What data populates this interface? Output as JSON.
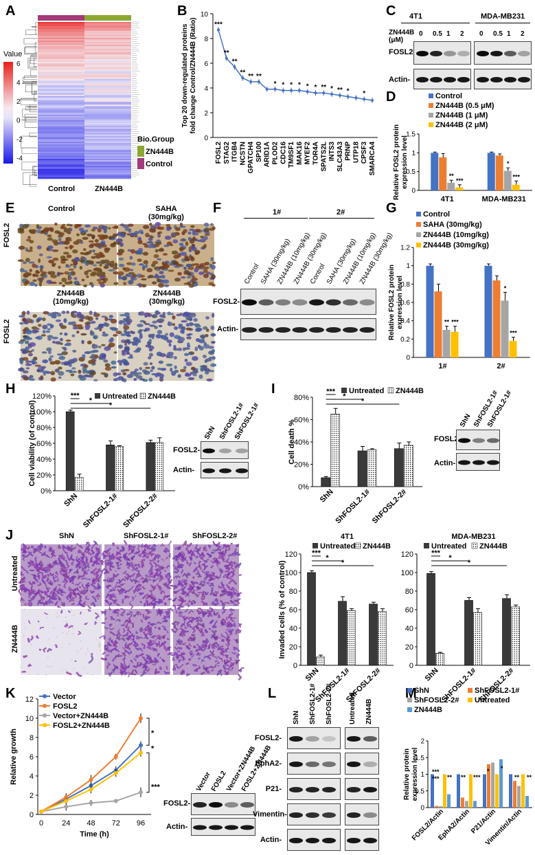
{
  "panels": {
    "A": "A",
    "B": "B",
    "C": "C",
    "D": "D",
    "E": "E",
    "F": "F",
    "G": "G",
    "H": "H",
    "I": "I",
    "J": "J",
    "K": "K",
    "L": "L",
    "M": "M"
  },
  "panelA": {
    "legend_title": "Value",
    "legend_ticks": [
      "6",
      "4",
      "2",
      "0",
      "-2",
      "-4"
    ],
    "biogroup_title": "Bio.Group",
    "groups": [
      "ZN444B",
      "Control"
    ],
    "group_colors": [
      "#8ca832",
      "#a33a7a"
    ],
    "col_labels": [
      "Control",
      "ZN444B"
    ]
  },
  "panelC": {
    "cells": [
      "4T1",
      "MDA-MB231"
    ],
    "treatment_label": "ZN444B (μM)",
    "doses": [
      "0",
      "0.5",
      "1",
      "2"
    ],
    "rows": [
      "FOSL2-",
      "Actin-"
    ]
  },
  "panelE": {
    "labels": [
      "Control",
      "SAHA (30mg/kg)",
      "ZN444B (10mg/kg)",
      "ZN444B (30mg/kg)"
    ],
    "row_label": "FOSL2"
  },
  "panelF": {
    "groups": [
      "1#",
      "2#"
    ],
    "lanes": [
      "Control",
      "SAHA (30mg/kg)",
      "ZN444B (10mg/kg)",
      "ZN444B (30mg/kg)",
      "Control",
      "SAHA (30mg/kg)",
      "ZN444B (10mg/kg)",
      "ZN444B (30mg/kg)"
    ],
    "rows": [
      "FOSL2-",
      "Actin-"
    ]
  },
  "panelH_blot": {
    "lanes": [
      "ShN",
      "ShFOSL2-1#",
      "ShFOSL2-1#"
    ],
    "rows": [
      "FOSL2-",
      "Actin-"
    ]
  },
  "panelI_blot": {
    "lanes": [
      "ShN",
      "ShFOSL2-1#",
      "ShFOSL2-1#"
    ],
    "rows": [
      "FOSL2-",
      "Actin-"
    ]
  },
  "panelJ_images": {
    "cols": [
      "ShN",
      "ShFOSL2-1#",
      "ShFOSL2-2#"
    ],
    "rows": [
      "Untreated",
      "ZN444B"
    ]
  },
  "panelK_blot": {
    "lanes": [
      "Vector",
      "FOSL2",
      "Vector+ZN444B",
      "FOSL2+ZN444B"
    ],
    "rows": [
      "FOSL2-",
      "Actin-"
    ]
  },
  "panelL": {
    "lanes_left": [
      "ShN",
      "ShFOSL2-1#",
      "ShFOSL2-2#"
    ],
    "lanes_right": [
      "Untreated",
      "ZN444B"
    ],
    "rows": [
      "FOSL2-",
      "EphA2-",
      "P21-",
      "Vimentin-",
      "Actin-"
    ]
  },
  "chart_data": [
    {
      "id": "B",
      "type": "line",
      "ylabel": "Top 20 down-regulated proteins fold change Control/ZN444B (Ratio)",
      "ylim": [
        0,
        10
      ],
      "yticks": [
        0,
        2,
        4,
        6,
        8,
        10
      ],
      "categories": [
        "FOSL2",
        "STAG2",
        "ITGB4",
        "NCSTN",
        "GPATCH4",
        "SP100",
        "ARID1A",
        "PLOD2",
        "CDC16",
        "TM9SF1",
        "MAK16",
        "MYEF2",
        "TOR4A",
        "SPATS2L",
        "INTS3",
        "SLC43A3",
        "PRNP",
        "UTP18",
        "CPSF3",
        "SMARCA4"
      ],
      "values": [
        8.7,
        6.4,
        5.7,
        4.8,
        4.5,
        4.5,
        3.9,
        3.9,
        3.8,
        3.8,
        3.8,
        3.7,
        3.6,
        3.6,
        3.5,
        3.4,
        3.3,
        3.2,
        3.1,
        3.0
      ],
      "sig": [
        "***",
        "**",
        "**",
        "**",
        "**",
        "**",
        "",
        "*",
        "*",
        "*",
        "*",
        "*",
        "*",
        "**",
        "*",
        "**",
        "*",
        "",
        "*",
        ""
      ]
    },
    {
      "id": "D",
      "type": "bar",
      "ylabel": "Relative FOSL2 protein expression level",
      "ylim": [
        0,
        1.5
      ],
      "yticks": [
        "0",
        "0.5",
        "1",
        "1.5"
      ],
      "categories": [
        "4T1",
        "MDA-MB231"
      ],
      "series": [
        {
          "name": "Control",
          "color": "#4472c4",
          "values": [
            1.0,
            1.0
          ],
          "err": [
            0.02,
            0.02
          ],
          "sig": [
            "",
            ""
          ]
        },
        {
          "name": "ZN444B (0.5 μM)",
          "color": "#ed7d31",
          "values": [
            0.88,
            0.93
          ],
          "err": [
            0.1,
            0.04
          ],
          "sig": [
            "",
            ""
          ]
        },
        {
          "name": "ZN444B (1 μM)",
          "color": "#a5a5a5",
          "values": [
            0.2,
            0.52
          ],
          "err": [
            0.07,
            0.08
          ],
          "sig": [
            "**",
            "*"
          ]
        },
        {
          "name": "ZN444B (2 μM)",
          "color": "#ffc000",
          "values": [
            0.08,
            0.15
          ],
          "err": [
            0.07,
            0.1
          ],
          "sig": [
            "***",
            "***"
          ]
        }
      ]
    },
    {
      "id": "G",
      "type": "bar",
      "ylabel": "Relative FOSL2 protein expression level",
      "ylim": [
        0,
        1.2
      ],
      "yticks": [
        "0",
        "0.2",
        "0.4",
        "0.6",
        "0.8",
        "1",
        "1.2"
      ],
      "categories": [
        "1#",
        "2#"
      ],
      "series": [
        {
          "name": "Control",
          "color": "#4472c4",
          "values": [
            1.0,
            1.0
          ],
          "err": [
            0.02,
            0.02
          ],
          "sig": [
            "",
            ""
          ]
        },
        {
          "name": "SAHA (30mg/kg)",
          "color": "#ed7d31",
          "values": [
            0.72,
            0.84
          ],
          "err": [
            0.08,
            0.05
          ],
          "sig": [
            "",
            ""
          ]
        },
        {
          "name": "ZN444B (10mg/kg)",
          "color": "#a5a5a5",
          "values": [
            0.3,
            0.62
          ],
          "err": [
            0.04,
            0.09
          ],
          "sig": [
            "**",
            "*"
          ]
        },
        {
          "name": "ZN444B (30mg/kg)",
          "color": "#ffc000",
          "values": [
            0.28,
            0.18
          ],
          "err": [
            0.06,
            0.04
          ],
          "sig": [
            "***",
            "***"
          ]
        }
      ]
    },
    {
      "id": "H",
      "type": "bar",
      "ylabel": "Cell viability (of control)",
      "ylim": [
        0,
        120
      ],
      "yticks": [
        "0%",
        "20%",
        "40%",
        "60%",
        "80%",
        "100%",
        "120%"
      ],
      "categories": [
        "ShN",
        "ShFOSL2-1#",
        "ShFOSL2-2#"
      ],
      "series": [
        {
          "name": "Untreated",
          "color": "#3a3a3a",
          "values": [
            100,
            58,
            61
          ],
          "err": [
            2,
            5,
            3
          ]
        },
        {
          "name": "ZN444B",
          "color": "dots",
          "values": [
            17,
            56,
            61
          ],
          "err": [
            4,
            1,
            6
          ]
        }
      ],
      "sig_lines": [
        "***",
        "*",
        "*"
      ]
    },
    {
      "id": "I",
      "type": "bar",
      "ylabel": "Cell death %",
      "ylim": [
        0,
        80
      ],
      "yticks": [
        "0%",
        "20%",
        "40%",
        "60%",
        "80%"
      ],
      "categories": [
        "ShN",
        "ShFOSL2-1#",
        "ShFOSL2-2#"
      ],
      "series": [
        {
          "name": "Untreated",
          "color": "#3a3a3a",
          "values": [
            8,
            32,
            34
          ],
          "err": [
            1,
            4,
            5
          ]
        },
        {
          "name": "ZN444B",
          "color": "dots",
          "values": [
            65,
            33,
            37
          ],
          "err": [
            5,
            1,
            3
          ]
        }
      ],
      "sig_lines": [
        "***",
        "*",
        "*"
      ]
    },
    {
      "id": "J1",
      "type": "bar",
      "title": "4T1",
      "ylabel": "Invaded cells (% of control)",
      "ylim": [
        0,
        120
      ],
      "yticks": [
        "0",
        "20",
        "40",
        "60",
        "80",
        "100",
        "120"
      ],
      "categories": [
        "ShN",
        "ShFOSL2-1#",
        "ShFOSL2-2#"
      ],
      "series": [
        {
          "name": "Untreated",
          "color": "#3a3a3a",
          "values": [
            100,
            69,
            66
          ],
          "err": [
            2,
            5,
            2
          ]
        },
        {
          "name": "ZN444B",
          "color": "dots",
          "values": [
            9,
            59,
            58
          ],
          "err": [
            2,
            2,
            3
          ]
        }
      ],
      "sig_lines": [
        "***",
        "*",
        "*"
      ]
    },
    {
      "id": "J2",
      "type": "bar",
      "title": "MDA-MB231",
      "ylabel": "",
      "ylim": [
        0,
        120
      ],
      "yticks": [
        "0",
        "20",
        "40",
        "60",
        "80",
        "100",
        "120"
      ],
      "categories": [
        "ShN",
        "ShFOSL2-1#",
        "ShFOSL2-2#"
      ],
      "series": [
        {
          "name": "Untreated",
          "color": "#3a3a3a",
          "values": [
            99,
            70,
            72
          ],
          "err": [
            2,
            3,
            4
          ]
        },
        {
          "name": "ZN444B",
          "color": "dots",
          "values": [
            13,
            57,
            63
          ],
          "err": [
            1,
            4,
            2
          ]
        }
      ],
      "sig_lines": [
        "***",
        "*",
        "*"
      ]
    },
    {
      "id": "K",
      "type": "line",
      "xlabel": "Time (h)",
      "ylabel": "Relative growth",
      "x": [
        0,
        24,
        48,
        72,
        96
      ],
      "ylim": [
        0,
        12
      ],
      "yticks": [
        "0",
        "2",
        "4",
        "6",
        "8",
        "10",
        "12"
      ],
      "series": [
        {
          "name": "Vector",
          "color": "#4472c4",
          "values": [
            0.3,
            1.6,
            3.0,
            4.6,
            7.2
          ],
          "err": [
            0.05,
            0.3,
            0.5,
            0.4,
            0.4
          ]
        },
        {
          "name": "FOSL2",
          "color": "#ed7d31",
          "values": [
            0.3,
            1.8,
            3.6,
            6.0,
            10.0
          ],
          "err": [
            0.05,
            0.4,
            0.5,
            0.3,
            0.5
          ]
        },
        {
          "name": "Vector+ZN444B",
          "color": "#a5a5a5",
          "values": [
            0.3,
            0.8,
            1.2,
            1.4,
            2.3
          ],
          "err": [
            0.05,
            0.4,
            0.3,
            0.2,
            0.5
          ]
        },
        {
          "name": "FOSL2+ZN444B",
          "color": "#ffc000",
          "values": [
            0.3,
            1.4,
            2.6,
            4.3,
            6.4
          ],
          "err": [
            0.05,
            0.3,
            0.4,
            0.4,
            0.4
          ]
        }
      ],
      "sig": [
        "*",
        "*",
        "***"
      ]
    },
    {
      "id": "M",
      "type": "bar",
      "ylabel": "Relative protein expression level",
      "ylim": [
        0,
        2
      ],
      "yticks": [
        "0",
        "0.5",
        "1",
        "1.5",
        "2"
      ],
      "categories": [
        "FOSL2/Actin",
        "EphA2/Actin",
        "P21/Actin",
        "Vimentin/Actin"
      ],
      "series": [
        {
          "name": "ShN",
          "color": "#4472c4",
          "values": [
            1.0,
            1.0,
            1.0,
            1.0
          ]
        },
        {
          "name": "ShFOSL2-1#",
          "color": "#ed7d31",
          "values": [
            0.05,
            0.3,
            1.3,
            0.8
          ]
        },
        {
          "name": "ShFOSL2-2#",
          "color": "#a5a5a5",
          "values": [
            0.04,
            0.2,
            1.35,
            0.65
          ]
        },
        {
          "name": "Untreated",
          "color": "#ffc000",
          "values": [
            1.0,
            1.0,
            1.0,
            1.0
          ]
        },
        {
          "name": "ZN444B",
          "color": "#5b9bd5",
          "values": [
            0.4,
            0.2,
            1.45,
            0.35
          ]
        }
      ],
      "sig_labels": [
        "***",
        "***",
        "**",
        "**",
        "***",
        "*",
        "*",
        "**",
        "**"
      ]
    }
  ],
  "legends": {
    "untreated": "Untreated",
    "zn444b": "ZN444B"
  }
}
